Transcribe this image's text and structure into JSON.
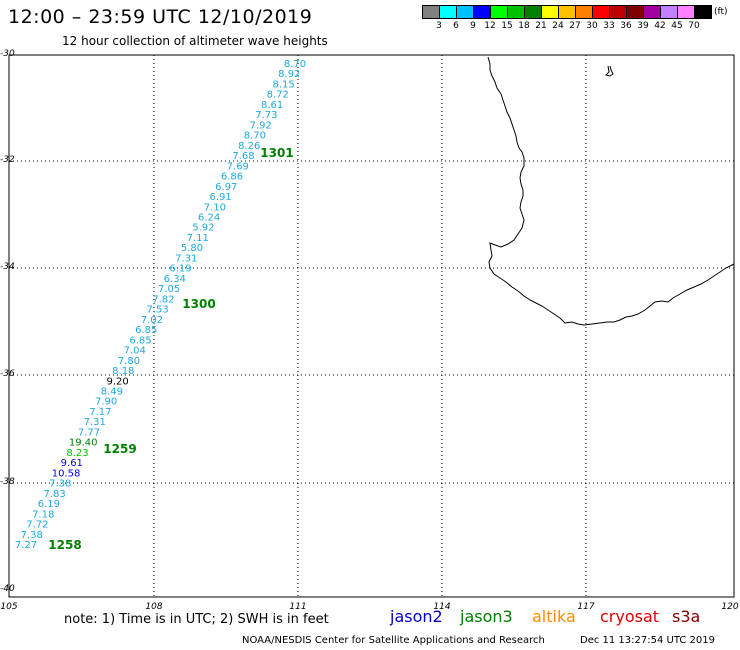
{
  "title": "12:00 – 23:59 UTC 12/10/2019",
  "subtitle": "12 hour collection of altimeter wave heights",
  "legend": {
    "colors": [
      "#808080",
      "#00ffff",
      "#00bfff",
      "#0000ff",
      "#00ff00",
      "#00c000",
      "#008000",
      "#ffff00",
      "#ffc000",
      "#ff8000",
      "#ff0000",
      "#c00000",
      "#800000",
      "#a000a0",
      "#c080ff",
      "#ff80ff",
      "#000000"
    ],
    "labels": [
      "3",
      "6",
      "9",
      "12",
      "15",
      "18",
      "21",
      "24",
      "27",
      "30",
      "33",
      "36",
      "39",
      "42",
      "45",
      "70"
    ],
    "unit": "(ft)"
  },
  "axes": {
    "lat_labels": [
      "-30",
      "-32",
      "-34",
      "-36",
      "-38",
      "-40"
    ],
    "lon_labels": [
      "105",
      "108",
      "111",
      "114",
      "117",
      "120"
    ]
  },
  "track": {
    "color": "#1fa9e0",
    "values": [
      "8.70",
      "8.92",
      "8.15",
      "8.72",
      "8.61",
      "7.73",
      "7.92",
      "8.70",
      "8.26",
      "7.68",
      "7.69",
      "6.86",
      "6.97",
      "6.91",
      "7.10",
      "6.24",
      "5.92",
      "7.11",
      "5.80",
      "7.31",
      "6.19",
      "6.34",
      "7.05",
      "7.82",
      "7.53",
      "7.02",
      "6.85",
      "6.85",
      "7.04",
      "7.80",
      "8.18",
      "9.20",
      "8.49",
      "7.90",
      "7.17",
      "7.31",
      "7.77",
      "19.40",
      "8.23",
      "9.61",
      "10.58",
      "7.38",
      "7.83",
      "6.19",
      "7.18",
      "7.72",
      "7.38",
      "7.27"
    ],
    "value_colors": {
      "9.20": "#000000",
      "19.40": "#008000",
      "8.23": "#00c000",
      "9.61": "#0000ff",
      "10.58": "#0000ff"
    }
  },
  "time_labels": [
    {
      "text": "1301",
      "color": "#008000"
    },
    {
      "text": "1300",
      "color": "#008000"
    },
    {
      "text": "1259",
      "color": "#008000"
    },
    {
      "text": "1258",
      "color": "#008000"
    }
  ],
  "note": "note:  1) Time is in UTC;  2) SWH is in feet",
  "missions": [
    {
      "name": "jason2",
      "color": "#0000d0"
    },
    {
      "name": "jason3",
      "color": "#008000"
    },
    {
      "name": "altika",
      "color": "#ff8c00"
    },
    {
      "name": "cryosat",
      "color": "#e00000"
    },
    {
      "name": "s3a",
      "color": "#800000"
    }
  ],
  "footer_left": "NOAA/NESDIS Center for Satellite Applications and Research",
  "footer_right": "Dec 11 13:27:54 UTC 2019"
}
